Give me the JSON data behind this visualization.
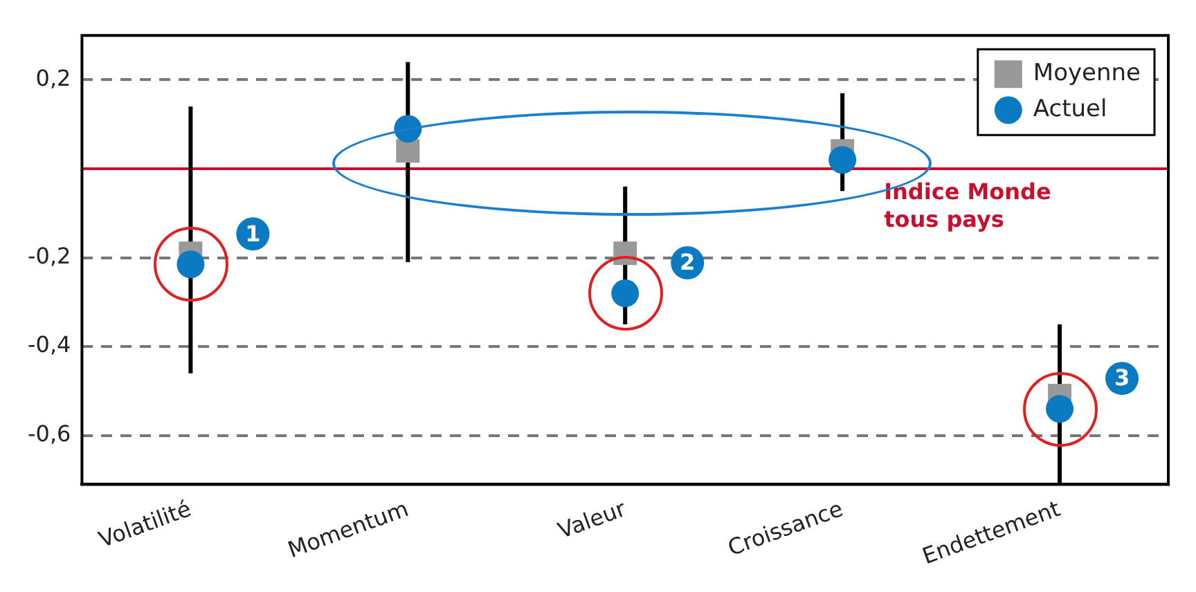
{
  "chart_data": {
    "type": "scatter",
    "categories": [
      "Volatilité",
      "Momentum",
      "Valeur",
      "Croissance",
      "Endettement"
    ],
    "series": [
      {
        "name": "Moyenne",
        "color": "#999999",
        "marker": "square",
        "x": [
          "Volatilité",
          "Momentum",
          "Valeur",
          "Croissance",
          "Endettement"
        ],
        "values": [
          -0.19,
          0.04,
          -0.19,
          0.04,
          -0.51
        ],
        "errors": [
          [
            -0.46,
            0.14
          ],
          [
            -0.21,
            0.24
          ],
          [
            -0.35,
            -0.04
          ],
          [
            -0.05,
            0.17
          ],
          [
            -0.71,
            -0.35
          ]
        ]
      },
      {
        "name": "Actuel",
        "color": "#0a7bc2",
        "marker": "circle",
        "x": [
          "Volatilité",
          "Momentum",
          "Valeur",
          "Croissance",
          "Endettement"
        ],
        "values": [
          -0.215,
          0.09,
          -0.28,
          0.02,
          -0.54
        ]
      }
    ],
    "ylim": [
      -0.71,
      0.3
    ],
    "yticks": [
      {
        "value": 0.2,
        "label": "0,2"
      },
      {
        "value": -0.2,
        "label": "-0,2"
      },
      {
        "value": -0.4,
        "label": "-0,4"
      },
      {
        "value": -0.6,
        "label": "-0,6"
      }
    ],
    "grid": "y",
    "legend": "top right",
    "ref_lines": [
      {
        "axis": "y",
        "value": 0,
        "label": "Indice Monde tous pays",
        "color": "#c8102e"
      }
    ],
    "annotations": [
      {
        "text": "1",
        "x": "Volatilité",
        "y": -0.215
      },
      {
        "text": "2",
        "x": "Valeur",
        "y": -0.28
      },
      {
        "text": "3",
        "x": "Endettement",
        "y": -0.54
      }
    ]
  }
}
